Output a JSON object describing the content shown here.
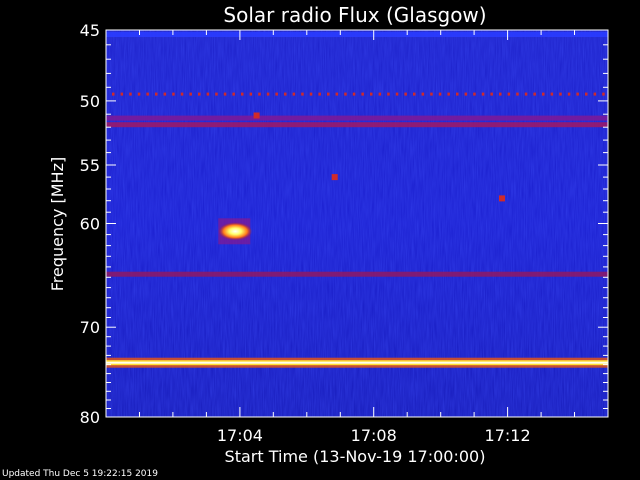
{
  "footer": {
    "updated": "Updated Thu Dec  5 19:22:15 2019"
  },
  "colors": {
    "background": "#000000",
    "axis": "#ffffff",
    "base": "#1a1fd0"
  },
  "chart_data": {
    "type": "heatmap",
    "title": "Solar radio Flux (Glasgow)",
    "xlabel": "Start Time (13-Nov-19 17:00:00)",
    "ylabel": "Frequency [MHz]",
    "y_scale": "log",
    "ylim": [
      45,
      80
    ],
    "y_ticks": [
      {
        "value": 45,
        "label": "45"
      },
      {
        "value": 50,
        "label": "50"
      },
      {
        "value": 55,
        "label": "55"
      },
      {
        "value": 60,
        "label": "60"
      },
      {
        "value": 70,
        "label": "70"
      },
      {
        "value": 80,
        "label": "80"
      }
    ],
    "xlim": [
      "17:00:00",
      "17:15:00"
    ],
    "x_ticks": [
      {
        "value": "17:04",
        "label": "17:04"
      },
      {
        "value": "17:08",
        "label": "17:08"
      },
      {
        "value": "17:12",
        "label": "17:12"
      }
    ],
    "features": [
      {
        "kind": "band",
        "freq": 45.3,
        "intensity": "medium",
        "color": "#2a3cff"
      },
      {
        "kind": "band",
        "freq": 49.5,
        "intensity": "dotted-red",
        "color": "#d02a2a"
      },
      {
        "kind": "band",
        "freq": 51.3,
        "intensity": "medium",
        "color": "#7a1a9a"
      },
      {
        "kind": "band",
        "freq": 51.8,
        "intensity": "medium",
        "color": "#9a1a6a"
      },
      {
        "kind": "band",
        "freq": 64.7,
        "intensity": "medium",
        "color": "#8a1a6a"
      },
      {
        "kind": "band",
        "freq": 73.8,
        "intensity": "high",
        "color": "#ffdd33"
      },
      {
        "kind": "burst",
        "time": "17:03:50",
        "freq": 60.7,
        "intensity": "high",
        "color": "#ffff66"
      },
      {
        "kind": "spot",
        "time": "17:06:50",
        "freq": 56.0,
        "intensity": "medium",
        "color": "#d02a2a"
      },
      {
        "kind": "spot",
        "time": "17:11:50",
        "freq": 57.8,
        "intensity": "medium",
        "color": "#d02a2a"
      },
      {
        "kind": "spot",
        "time": "17:04:30",
        "freq": 51.1,
        "intensity": "medium",
        "color": "#d02a2a"
      }
    ]
  }
}
